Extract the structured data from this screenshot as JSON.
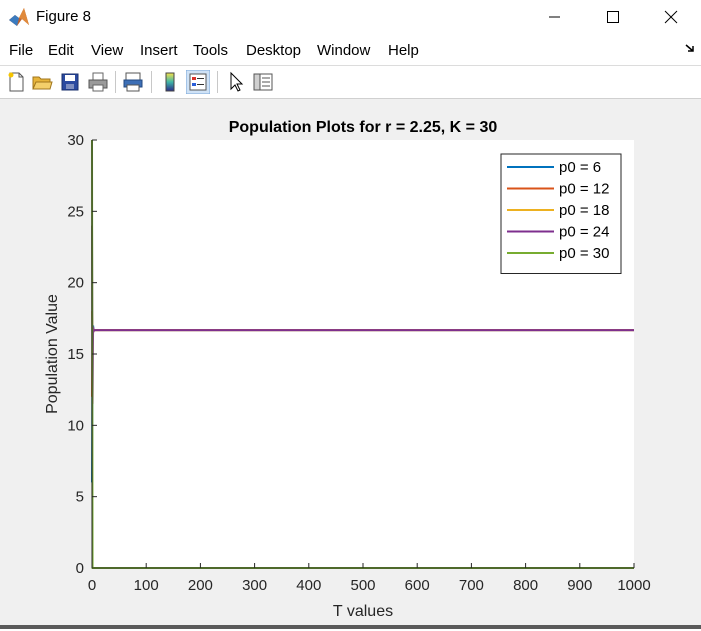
{
  "window": {
    "title": "Figure 8"
  },
  "menu": {
    "items": [
      "File",
      "Edit",
      "View",
      "Insert",
      "Tools",
      "Desktop",
      "Window",
      "Help"
    ]
  },
  "toolbar": {
    "icons": [
      "new-figure-icon",
      "open-file-icon",
      "save-icon",
      "print-icon",
      "print-preview-icon",
      "colorbar-icon",
      "legend-icon",
      "pointer-icon",
      "property-editor-icon"
    ]
  },
  "colors": {
    "series": [
      "#0072BD",
      "#D95319",
      "#EDB120",
      "#7E2F8E",
      "#77AC30"
    ]
  },
  "chart_data": {
    "type": "line",
    "title": "Population Plots for r = 2.25, K = 30",
    "xlabel": "T values",
    "ylabel": "Population Value",
    "xlim": [
      0,
      1000
    ],
    "ylim": [
      0,
      30
    ],
    "xticks": [
      "0",
      "100",
      "200",
      "300",
      "400",
      "500",
      "600",
      "700",
      "800",
      "900",
      "1000"
    ],
    "yticks": [
      "0",
      "5",
      "10",
      "15",
      "20",
      "25",
      "30"
    ],
    "legend_position": "top-right",
    "grid": false,
    "series": [
      {
        "name": "p0 = 6",
        "x": [
          0,
          1,
          2,
          3,
          4,
          6,
          8,
          12,
          20,
          50,
          1000
        ],
        "y": [
          6,
          16.2,
          17.0,
          16.6,
          16.7,
          16.67,
          16.67,
          16.67,
          16.67,
          16.67,
          16.67
        ]
      },
      {
        "name": "p0 = 12",
        "x": [
          0,
          1,
          2,
          3,
          4,
          6,
          8,
          12,
          20,
          50,
          1000
        ],
        "y": [
          12,
          16.9,
          16.5,
          16.7,
          16.66,
          16.67,
          16.67,
          16.67,
          16.67,
          16.67,
          16.67
        ]
      },
      {
        "name": "p0 = 18",
        "x": [
          0,
          1,
          2,
          3,
          4,
          6,
          8,
          12,
          20,
          50,
          1000
        ],
        "y": [
          18,
          16.4,
          16.8,
          16.65,
          16.67,
          16.67,
          16.67,
          16.67,
          16.67,
          16.67,
          16.67
        ]
      },
      {
        "name": "p0 = 24",
        "x": [
          0,
          1,
          2,
          3,
          4,
          6,
          8,
          12,
          20,
          50,
          1000
        ],
        "y": [
          24,
          11.5,
          16.9,
          16.6,
          16.68,
          16.67,
          16.67,
          16.67,
          16.67,
          16.67,
          16.67
        ]
      },
      {
        "name": "p0 = 30",
        "x": [
          0,
          1,
          2,
          1000
        ],
        "y": [
          30,
          0,
          0,
          0
        ]
      }
    ]
  }
}
